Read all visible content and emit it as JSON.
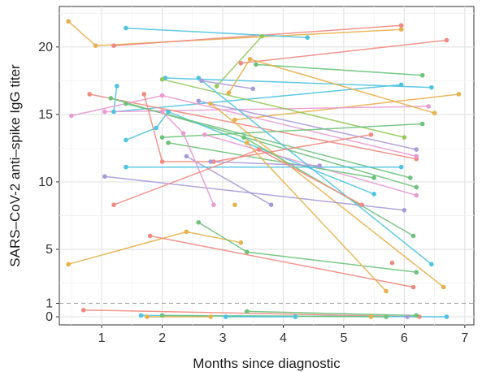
{
  "chart_data": {
    "type": "line",
    "title": "",
    "xlabel": "Months since diagnostic",
    "ylabel": "SARS–CoV-2 anti–spike IgG titer",
    "xlim": [
      0.3,
      7.15
    ],
    "ylim": [
      -0.6,
      23.0
    ],
    "x_ticks": [
      1,
      2,
      3,
      4,
      5,
      6,
      7
    ],
    "y_ticks": [
      0,
      1,
      5,
      10,
      15,
      20
    ],
    "grid": true,
    "reference_line": {
      "y": 1,
      "style": "dashed"
    },
    "series": [
      {
        "color": "#e8b04a",
        "points": [
          [
            0.45,
            21.9
          ],
          [
            0.9,
            20.1
          ],
          [
            5.95,
            21.3
          ]
        ]
      },
      {
        "color": "#f08a80",
        "points": [
          [
            1.2,
            20.1
          ],
          [
            5.95,
            21.6
          ]
        ]
      },
      {
        "color": "#4cc3e0",
        "points": [
          [
            1.4,
            21.4
          ],
          [
            4.4,
            20.7
          ]
        ]
      },
      {
        "color": "#92c95a",
        "points": [
          [
            2.9,
            17.1
          ],
          [
            3.65,
            20.8
          ]
        ]
      },
      {
        "color": "#f08a80",
        "points": [
          [
            3.3,
            18.8
          ],
          [
            6.7,
            20.5
          ]
        ]
      },
      {
        "color": "#4cc3e0",
        "points": [
          [
            2.05,
            17.7
          ],
          [
            6.45,
            17.0
          ]
        ]
      },
      {
        "color": "#6cc27a",
        "points": [
          [
            3.55,
            18.7
          ],
          [
            6.3,
            17.9
          ]
        ]
      },
      {
        "color": "#e8b04a",
        "points": [
          [
            3.2,
            14.6
          ],
          [
            6.9,
            16.5
          ]
        ]
      },
      {
        "color": "#4cc3e0",
        "points": [
          [
            1.25,
            17.1
          ],
          [
            1.2,
            15.2
          ],
          [
            5.95,
            17.2
          ]
        ]
      },
      {
        "color": "#e89ad0",
        "points": [
          [
            1.05,
            15.2
          ],
          [
            6.4,
            15.6
          ]
        ]
      },
      {
        "color": "#92c95a",
        "points": [
          [
            2.0,
            17.6
          ],
          [
            6.0,
            13.3
          ]
        ]
      },
      {
        "color": "#f08a80",
        "points": [
          [
            0.8,
            16.5
          ],
          [
            6.2,
            11.7
          ]
        ]
      },
      {
        "color": "#6cc27a",
        "points": [
          [
            1.15,
            16.2
          ],
          [
            6.2,
            9.6
          ]
        ]
      },
      {
        "color": "#a89ad8",
        "points": [
          [
            2.65,
            17.5
          ],
          [
            3.5,
            16.9
          ]
        ]
      },
      {
        "color": "#e8b04a",
        "points": [
          [
            3.1,
            16.6
          ],
          [
            3.45,
            19.1
          ],
          [
            6.5,
            15.1
          ]
        ]
      },
      {
        "color": "#4cc3e0",
        "points": [
          [
            1.4,
            13.1
          ],
          [
            1.9,
            14.0
          ],
          [
            2.1,
            15.2
          ],
          [
            5.5,
            9.1
          ]
        ]
      },
      {
        "color": "#a89ad8",
        "points": [
          [
            2.6,
            16.0
          ],
          [
            6.2,
            12.4
          ]
        ]
      },
      {
        "color": "#e89ad0",
        "points": [
          [
            0.5,
            14.9
          ],
          [
            2.0,
            16.4
          ],
          [
            6.2,
            11.9
          ]
        ]
      },
      {
        "color": "#6cc27a",
        "points": [
          [
            1.4,
            15.8
          ],
          [
            6.1,
            10.3
          ]
        ]
      },
      {
        "color": "#e89ad0",
        "points": [
          [
            2.7,
            13.5
          ],
          [
            6.2,
            9.0
          ]
        ]
      },
      {
        "color": "#6cc27a",
        "points": [
          [
            2.0,
            13.3
          ],
          [
            6.3,
            14.3
          ]
        ]
      },
      {
        "color": "#4cc3e0",
        "points": [
          [
            2.6,
            17.7
          ],
          [
            6.45,
            3.9
          ]
        ]
      },
      {
        "color": "#6cc27a",
        "points": [
          [
            2.1,
            12.9
          ],
          [
            5.5,
            10.3
          ]
        ]
      },
      {
        "color": "#e8b04a",
        "points": [
          [
            2.8,
            15.8
          ],
          [
            6.65,
            2.2
          ]
        ]
      },
      {
        "color": "#a89ad8",
        "points": [
          [
            2.4,
            11.9
          ],
          [
            3.8,
            8.3
          ]
        ]
      },
      {
        "color": "#4cc3e0",
        "points": [
          [
            1.4,
            11.1
          ],
          [
            5.95,
            11.1
          ]
        ]
      },
      {
        "color": "#a89ad8",
        "points": [
          [
            1.05,
            10.4
          ],
          [
            6.0,
            7.9
          ]
        ]
      },
      {
        "color": "#f08a80",
        "points": [
          [
            1.7,
            16.5
          ],
          [
            2.0,
            11.5
          ],
          [
            2.85,
            11.5
          ],
          [
            5.45,
            13.5
          ]
        ]
      },
      {
        "color": "#e89ad0",
        "points": [
          [
            2.0,
            15.2
          ],
          [
            2.35,
            13.6
          ],
          [
            2.85,
            8.3
          ]
        ]
      },
      {
        "color": "#6cc27a",
        "points": [
          [
            3.35,
            13.3
          ],
          [
            6.15,
            6.0
          ]
        ]
      },
      {
        "color": "#a89ad8",
        "points": [
          [
            2.8,
            11.5
          ],
          [
            4.6,
            11.2
          ]
        ]
      },
      {
        "color": "#f08a80",
        "points": [
          [
            1.2,
            8.3
          ],
          [
            3.6,
            12.4
          ],
          [
            5.3,
            8.3
          ]
        ]
      },
      {
        "color": "#e8b04a",
        "points": [
          [
            0.45,
            3.9
          ],
          [
            2.4,
            6.3
          ],
          [
            3.3,
            5.5
          ]
        ]
      },
      {
        "color": "#f08a80",
        "points": [
          [
            1.8,
            6.0
          ],
          [
            6.15,
            2.2
          ]
        ]
      },
      {
        "color": "#6cc27a",
        "points": [
          [
            2.6,
            7.0
          ],
          [
            3.4,
            4.8
          ],
          [
            6.2,
            3.3
          ]
        ]
      },
      {
        "color": "#e8b04a",
        "points": [
          [
            3.4,
            12.9
          ],
          [
            5.7,
            1.9
          ]
        ]
      },
      {
        "color": "#f08a80",
        "points": [
          [
            0.7,
            0.5
          ],
          [
            6.25,
            0.0
          ]
        ]
      },
      {
        "color": "#4cc3e0",
        "points": [
          [
            1.65,
            0.1
          ],
          [
            6.7,
            0.0
          ]
        ]
      },
      {
        "color": "#e8b04a",
        "points": [
          [
            1.75,
            0.0
          ],
          [
            2.8,
            0.0
          ]
        ]
      },
      {
        "color": "#6cc27a",
        "points": [
          [
            2.0,
            0.1
          ],
          [
            5.7,
            0.0
          ]
        ]
      },
      {
        "color": "#4cc3e0",
        "points": [
          [
            3.05,
            0.0
          ],
          [
            4.2,
            0.0
          ]
        ]
      },
      {
        "color": "#6cc27a",
        "points": [
          [
            3.4,
            0.4
          ],
          [
            6.2,
            0.1
          ]
        ]
      }
    ],
    "isolated_points": [
      {
        "color": "#e8b04a",
        "x": 3.2,
        "y": 8.3
      },
      {
        "color": "#f08a80",
        "x": 5.8,
        "y": 4.0
      },
      {
        "color": "#e8b04a",
        "x": 5.45,
        "y": 0.0
      },
      {
        "color": "#a89ad8",
        "x": 6.05,
        "y": 0.0
      }
    ]
  }
}
